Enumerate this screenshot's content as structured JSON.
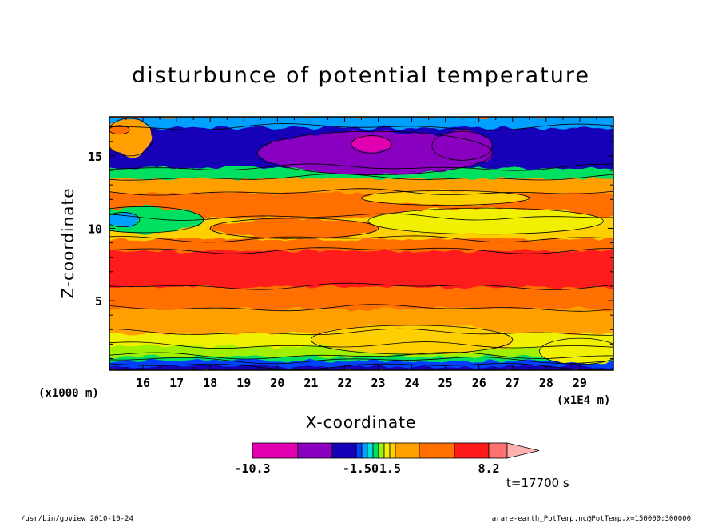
{
  "chart_data": {
    "type": "heatmap",
    "title": "disturbunce of potential temperature",
    "xlabel": "X-coordinate",
    "ylabel": "Z-coordinate",
    "x_unit": "(x1E4 m)",
    "y_unit": "(x1000 m)",
    "xlim": [
      15.0,
      30.0
    ],
    "ylim": [
      0.2,
      17.7
    ],
    "x_ticks": [
      "16",
      "17",
      "18",
      "19",
      "20",
      "21",
      "22",
      "23",
      "24",
      "25",
      "26",
      "27",
      "28",
      "29"
    ],
    "y_ticks": [
      "5",
      "10",
      "15"
    ],
    "colorbar": {
      "labels": [
        "-10.3",
        "-1.50",
        "1.5",
        "8.2"
      ],
      "colors": [
        "#e000b0",
        "#8a00c0",
        "#1400b8",
        "#0040ff",
        "#00a0ff",
        "#00e0e0",
        "#00e060",
        "#a0f000",
        "#f0f000",
        "#ffd000",
        "#ffa000",
        "#ff7000",
        "#ff1a1a",
        "#ff7070",
        "#ffb0b0"
      ]
    },
    "bands": [
      {
        "z_bottom": 0.2,
        "z_top": 0.5,
        "color": "#1400b8"
      },
      {
        "z_bottom": 0.5,
        "z_top": 0.9,
        "color": "#0040ff"
      },
      {
        "z_bottom": 0.9,
        "z_top": 1.2,
        "color": "#00e060"
      },
      {
        "z_bottom": 1.2,
        "z_top": 1.9,
        "color": "#a0f000"
      },
      {
        "z_bottom": 1.9,
        "z_top": 2.8,
        "color": "#f0f000"
      },
      {
        "z_bottom": 2.8,
        "z_top": 4.5,
        "color": "#ffa000"
      },
      {
        "z_bottom": 4.5,
        "z_top": 6.0,
        "color": "#ff7000"
      },
      {
        "z_bottom": 6.0,
        "z_top": 8.5,
        "color": "#ff1a1a"
      },
      {
        "z_bottom": 8.5,
        "z_top": 9.3,
        "color": "#ff7000"
      },
      {
        "z_bottom": 9.3,
        "z_top": 10.8,
        "color": "#ffd000"
      },
      {
        "z_bottom": 10.8,
        "z_top": 12.5,
        "color": "#ff7000"
      },
      {
        "z_bottom": 12.5,
        "z_top": 13.5,
        "color": "#ffa000"
      },
      {
        "z_bottom": 13.5,
        "z_top": 14.2,
        "color": "#00e060"
      },
      {
        "z_bottom": 14.2,
        "z_top": 17.0,
        "color": "#1400b8"
      },
      {
        "z_bottom": 17.0,
        "z_top": 17.7,
        "color": "#00a0ff"
      }
    ],
    "blobs": [
      {
        "x": 22.9,
        "z": 15.2,
        "rx": 3.5,
        "rz": 1.5,
        "color": "#8a00c0"
      },
      {
        "x": 25.5,
        "z": 15.7,
        "rx": 0.9,
        "rz": 1.0,
        "color": "#8a00c0"
      },
      {
        "x": 22.8,
        "z": 15.8,
        "rx": 0.6,
        "rz": 0.6,
        "color": "#e000b0"
      },
      {
        "x": 15.6,
        "z": 16.3,
        "rx": 0.7,
        "rz": 1.3,
        "color": "#ffa000"
      },
      {
        "x": 15.3,
        "z": 16.8,
        "rx": 0.3,
        "rz": 0.3,
        "color": "#ff7000"
      },
      {
        "x": 16.0,
        "z": 10.6,
        "rx": 1.8,
        "rz": 0.9,
        "color": "#00e060"
      },
      {
        "x": 15.4,
        "z": 10.6,
        "rx": 0.5,
        "rz": 0.5,
        "color": "#00a0ff"
      },
      {
        "x": 20.5,
        "z": 10.0,
        "rx": 2.5,
        "rz": 0.7,
        "color": "#ff7000"
      },
      {
        "x": 26.2,
        "z": 10.5,
        "rx": 3.5,
        "rz": 0.9,
        "color": "#f0f000"
      },
      {
        "x": 25.0,
        "z": 12.1,
        "rx": 2.5,
        "rz": 0.5,
        "color": "#ffd000"
      },
      {
        "x": 24.0,
        "z": 2.3,
        "rx": 3.0,
        "rz": 1.0,
        "color": "#ffd000"
      },
      {
        "x": 29.0,
        "z": 1.5,
        "rx": 1.2,
        "rz": 0.9,
        "color": "#f0f000"
      }
    ]
  },
  "time_label": "t=17700 s",
  "footer": {
    "left": "/usr/bin/gpview   2010-10-24",
    "right": "arare-earth_PotTemp.nc@PotTemp,x=150000:300000"
  }
}
